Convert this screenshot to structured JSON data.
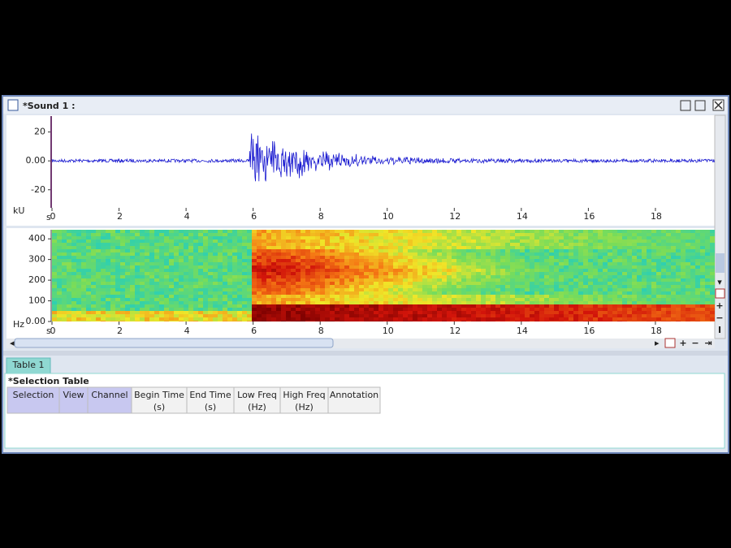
{
  "window": {
    "title": "*Sound 1 :"
  },
  "waveform": {
    "y_unit": "kU",
    "x_unit": "s",
    "ylim": [
      -32.5,
      31
    ],
    "yticks": [
      20,
      {
        "value": 0,
        "label": "0.00"
      },
      -20
    ],
    "xlim": [
      0,
      19.77
    ],
    "xticks": [
      0,
      2,
      4,
      6,
      8,
      10,
      12,
      14,
      16,
      18
    ]
  },
  "spectrogram": {
    "y_unit": "Hz",
    "x_unit": "s",
    "ylim": [
      0,
      444
    ],
    "yticks": [
      400,
      300,
      200,
      100,
      {
        "value": 0,
        "label": "0.00"
      }
    ],
    "xlim": [
      0,
      19.77
    ],
    "xticks": [
      0,
      2,
      4,
      6,
      8,
      10,
      12,
      14,
      16,
      18
    ]
  },
  "tab": {
    "label": "Table 1"
  },
  "table": {
    "title": "*Selection Table",
    "columns": [
      [
        "Selection"
      ],
      [
        "View"
      ],
      [
        "Channel"
      ],
      [
        "Begin Time",
        "(s)"
      ],
      [
        "End Time",
        "(s)"
      ],
      [
        "Low Freq",
        "(Hz)"
      ],
      [
        "High Freq",
        "(Hz)"
      ],
      [
        "Annotation"
      ]
    ]
  }
}
